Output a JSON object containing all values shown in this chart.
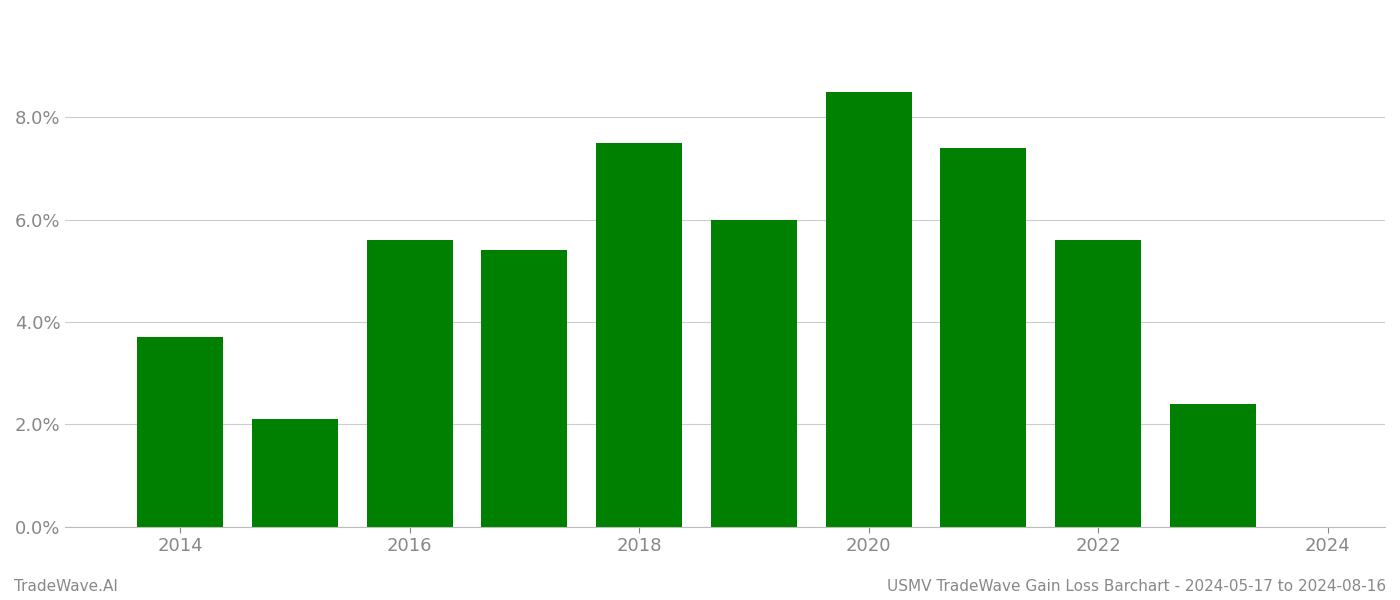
{
  "years": [
    2014,
    2015,
    2016,
    2017,
    2018,
    2019,
    2020,
    2021,
    2022,
    2023
  ],
  "values": [
    0.037,
    0.021,
    0.056,
    0.054,
    0.075,
    0.06,
    0.085,
    0.074,
    0.056,
    0.024
  ],
  "bar_color": "#008000",
  "footer_left": "TradeWave.AI",
  "footer_right": "USMV TradeWave Gain Loss Barchart - 2024-05-17 to 2024-08-16",
  "ylim": [
    0,
    0.1
  ],
  "yticks": [
    0.0,
    0.02,
    0.04,
    0.06,
    0.08
  ],
  "xlim_left": 2013.0,
  "xlim_right": 2024.5,
  "xticks": [
    2014,
    2016,
    2018,
    2020,
    2022,
    2024
  ],
  "background_color": "#ffffff",
  "grid_color": "#cccccc",
  "tick_color": "#888888",
  "bar_width": 0.75,
  "figsize": [
    14.0,
    6.0
  ],
  "dpi": 100
}
